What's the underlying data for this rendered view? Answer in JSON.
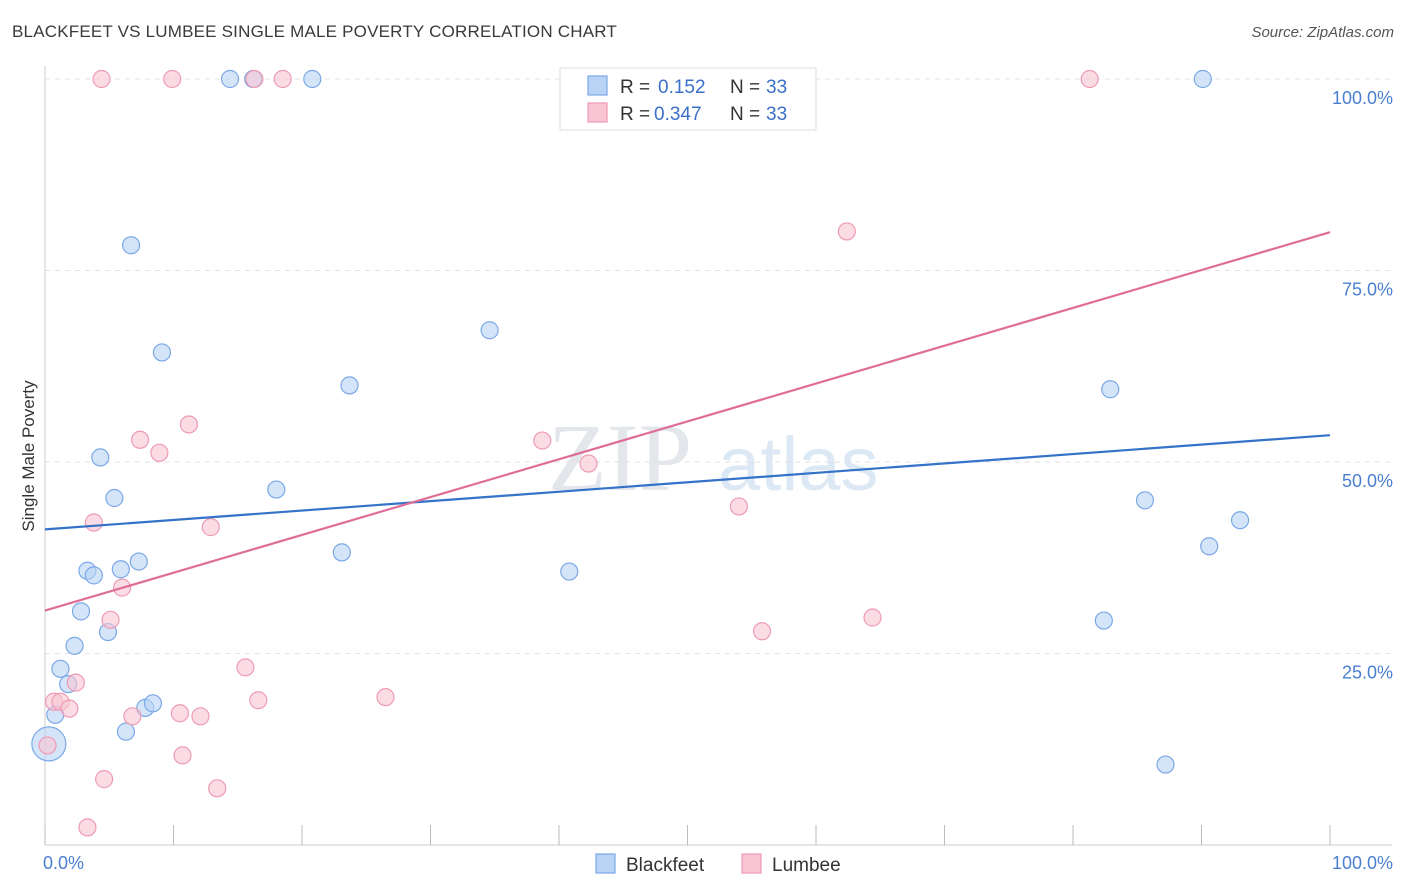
{
  "title": "BLACKFEET VS LUMBEE SINGLE MALE POVERTY CORRELATION CHART",
  "source": "Source: ZipAtlas.com",
  "watermark": {
    "zip": "ZIP",
    "atlas": "atlas"
  },
  "colors": {
    "blackfeet_fill": "#b9d3f5",
    "blackfeet_stroke": "#7aa8e6",
    "blackfeet_line": "#3473c8",
    "lumbee_fill": "#f9c5d4",
    "lumbee_stroke": "#ee9bb4",
    "lumbee_line": "#e06d98",
    "axis_text": "#4a7fd0"
  },
  "legend": {
    "rows": [
      {
        "r_label": "R =",
        "r_value": "0.152",
        "n_label": "N =",
        "n_value": "33"
      },
      {
        "r_label": "R =",
        "r_value": "0.347",
        "n_label": "N =",
        "n_value": "33"
      }
    ]
  },
  "chart_data": {
    "type": "scatter",
    "title": "BLACKFEET VS LUMBEE SINGLE MALE POVERTY CORRELATION CHART",
    "xlabel": "",
    "ylabel": "Single Male Poverty",
    "xlim": [
      0,
      100
    ],
    "ylim": [
      0,
      100
    ],
    "x_tick_labels": [
      "0.0%",
      "100.0%"
    ],
    "y_tick_labels": [
      {
        "value": 25,
        "label": "25.0%"
      },
      {
        "value": 50,
        "label": "50.0%"
      },
      {
        "value": 75,
        "label": "75.0%"
      },
      {
        "value": 100,
        "label": "100.0%"
      }
    ],
    "grid": true,
    "legend_position": "bottom-center",
    "series": [
      {
        "name": "Blackfeet",
        "r": 0.152,
        "n": 33,
        "trend": {
          "x0": 0,
          "y0": 41.2,
          "x1": 100,
          "y1": 53.5
        },
        "points": [
          [
            0.3,
            13.2,
            "big"
          ],
          [
            0.8,
            17.0
          ],
          [
            1.2,
            23.0
          ],
          [
            1.8,
            21.0
          ],
          [
            2.3,
            26.0
          ],
          [
            2.8,
            30.5
          ],
          [
            3.3,
            35.8
          ],
          [
            3.8,
            35.2
          ],
          [
            4.3,
            50.6
          ],
          [
            4.9,
            27.8
          ],
          [
            5.4,
            45.3
          ],
          [
            5.9,
            36.0
          ],
          [
            6.3,
            14.8
          ],
          [
            6.7,
            78.3
          ],
          [
            7.3,
            37.0
          ],
          [
            7.8,
            17.9
          ],
          [
            8.4,
            18.5
          ],
          [
            9.1,
            64.3
          ],
          [
            14.4,
            100
          ],
          [
            16.2,
            100
          ],
          [
            18.0,
            46.4
          ],
          [
            20.8,
            100
          ],
          [
            23.1,
            38.2
          ],
          [
            23.7,
            60.0
          ],
          [
            34.6,
            67.2
          ],
          [
            40.8,
            35.7
          ],
          [
            82.4,
            29.3
          ],
          [
            82.9,
            59.5
          ],
          [
            85.6,
            45.0
          ],
          [
            87.2,
            10.5
          ],
          [
            90.1,
            100
          ],
          [
            90.6,
            39.0
          ],
          [
            93.0,
            42.4
          ]
        ]
      },
      {
        "name": "Lumbee",
        "r": 0.347,
        "n": 33,
        "trend": {
          "x0": 0,
          "y0": 30.6,
          "x1": 100,
          "y1": 80.0
        },
        "points": [
          [
            0.2,
            13.0
          ],
          [
            0.7,
            18.7
          ],
          [
            1.2,
            18.7
          ],
          [
            1.9,
            17.8
          ],
          [
            2.4,
            21.2
          ],
          [
            3.3,
            2.3
          ],
          [
            3.8,
            42.1
          ],
          [
            4.4,
            100
          ],
          [
            4.6,
            8.6
          ],
          [
            5.1,
            29.4
          ],
          [
            6.0,
            33.6
          ],
          [
            6.8,
            16.8
          ],
          [
            7.4,
            52.9
          ],
          [
            8.9,
            51.2
          ],
          [
            9.9,
            100
          ],
          [
            10.5,
            17.2
          ],
          [
            10.7,
            11.7
          ],
          [
            11.2,
            54.9
          ],
          [
            12.1,
            16.8
          ],
          [
            12.9,
            41.5
          ],
          [
            13.4,
            7.4
          ],
          [
            15.6,
            23.2
          ],
          [
            16.3,
            100
          ],
          [
            16.6,
            18.9
          ],
          [
            18.5,
            100
          ],
          [
            26.5,
            19.3
          ],
          [
            38.7,
            52.8
          ],
          [
            42.3,
            49.8
          ],
          [
            54.0,
            44.2
          ],
          [
            55.8,
            27.9
          ],
          [
            62.4,
            80.1
          ],
          [
            64.4,
            29.7
          ],
          [
            81.3,
            100
          ]
        ]
      }
    ]
  }
}
